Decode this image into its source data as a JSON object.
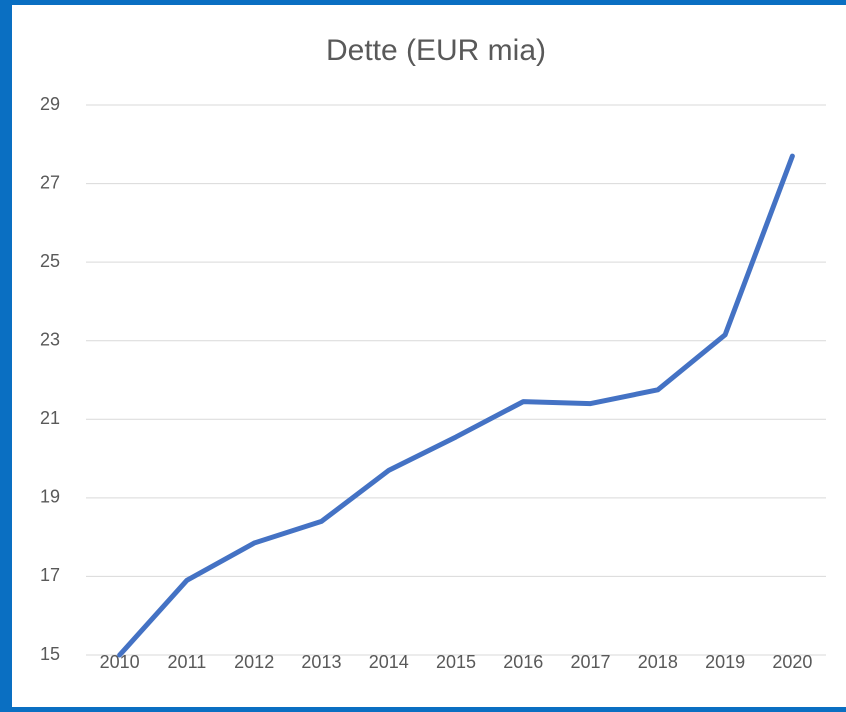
{
  "chart_data": {
    "type": "line",
    "title": "Dette (EUR mia)",
    "categories": [
      "2010",
      "2011",
      "2012",
      "2013",
      "2014",
      "2015",
      "2016",
      "2017",
      "2018",
      "2019",
      "2020"
    ],
    "series": [
      {
        "name": "Dette",
        "color": "#4472c4",
        "values": [
          15.0,
          16.9,
          17.85,
          18.4,
          19.7,
          20.55,
          21.45,
          21.4,
          21.75,
          23.15,
          27.7
        ]
      }
    ],
    "ylim": [
      15,
      29
    ],
    "yticks": [
      15,
      17,
      19,
      21,
      23,
      25,
      27,
      29
    ],
    "grid": true
  }
}
